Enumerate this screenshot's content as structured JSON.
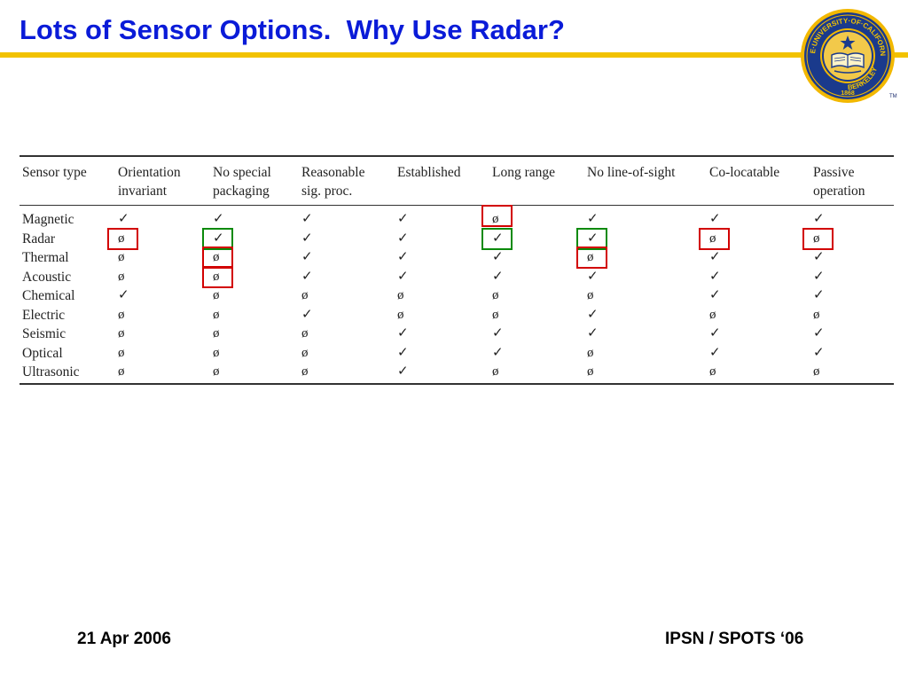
{
  "slide": {
    "title": "Lots of Sensor Options.  Why Use Radar?",
    "footer_left": "21 Apr 2006",
    "footer_right": "IPSN / SPOTS ‘06"
  },
  "logo": {
    "name": "uc-berkeley-seal",
    "ring_text_top": "THE·UNIVERSITY·OF·CALIFORNIA",
    "ring_text_bottom": "BERKELEY",
    "year": "1868",
    "trademark": "TM"
  },
  "colors": {
    "title": "#0a1bd8",
    "rule": "#f2c200",
    "highlight_bad": "#d20000",
    "highlight_good": "#0b8a0b"
  },
  "table": {
    "headers": [
      [
        "Sensor type",
        ""
      ],
      [
        "Orientation",
        "invariant"
      ],
      [
        "No special",
        "packaging"
      ],
      [
        "Reasonable",
        "sig. proc."
      ],
      [
        "Established",
        ""
      ],
      [
        "Long range",
        ""
      ],
      [
        "No line-of-sight",
        ""
      ],
      [
        "Co-locatable",
        ""
      ],
      [
        "Passive",
        "operation"
      ]
    ],
    "rows": [
      {
        "sensor": "Magnetic",
        "marks": [
          "✓",
          "✓",
          "✓",
          "✓",
          "ø",
          "✓",
          "✓",
          "✓"
        ]
      },
      {
        "sensor": "Radar",
        "marks": [
          "ø",
          "✓",
          "✓",
          "✓",
          "✓",
          "✓",
          "ø",
          "ø"
        ]
      },
      {
        "sensor": "Thermal",
        "marks": [
          "ø",
          "ø",
          "✓",
          "✓",
          "✓",
          "ø",
          "✓",
          "✓"
        ]
      },
      {
        "sensor": "Acoustic",
        "marks": [
          "ø",
          "ø",
          "✓",
          "✓",
          "✓",
          "✓",
          "✓",
          "✓"
        ]
      },
      {
        "sensor": "Chemical",
        "marks": [
          "✓",
          "ø",
          "ø",
          "ø",
          "ø",
          "ø",
          "✓",
          "✓"
        ]
      },
      {
        "sensor": "Electric",
        "marks": [
          "ø",
          "ø",
          "✓",
          "ø",
          "ø",
          "✓",
          "ø",
          "ø"
        ]
      },
      {
        "sensor": "Seismic",
        "marks": [
          "ø",
          "ø",
          "ø",
          "✓",
          "✓",
          "✓",
          "✓",
          "✓"
        ]
      },
      {
        "sensor": "Optical",
        "marks": [
          "ø",
          "ø",
          "ø",
          "✓",
          "✓",
          "ø",
          "✓",
          "✓"
        ]
      },
      {
        "sensor": "Ultrasonic",
        "marks": [
          "ø",
          "ø",
          "ø",
          "✓",
          "ø",
          "ø",
          "ø",
          "ø"
        ]
      }
    ],
    "highlights": [
      {
        "row": 0,
        "col": 5,
        "color": "red"
      },
      {
        "row": 1,
        "col": 1,
        "color": "red"
      },
      {
        "row": 1,
        "col": 2,
        "color": "green"
      },
      {
        "row": 1,
        "col": 5,
        "color": "green"
      },
      {
        "row": 1,
        "col": 6,
        "color": "green"
      },
      {
        "row": 1,
        "col": 7,
        "color": "red"
      },
      {
        "row": 1,
        "col": 8,
        "color": "red"
      },
      {
        "row": 2,
        "col": 2,
        "color": "red"
      },
      {
        "row": 2,
        "col": 6,
        "color": "red"
      },
      {
        "row": 3,
        "col": 2,
        "color": "red"
      }
    ]
  }
}
